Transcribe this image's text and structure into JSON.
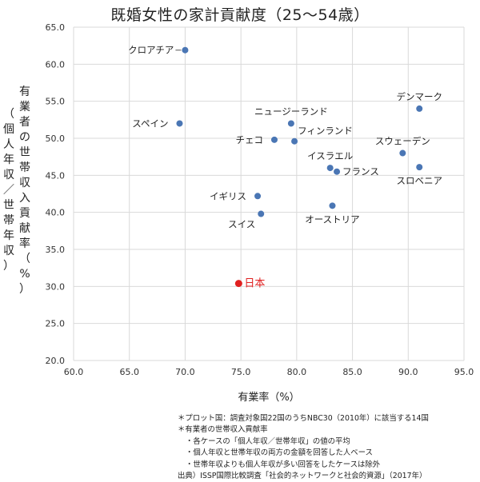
{
  "chart_data": {
    "type": "scatter",
    "title": "既婚女性の家計貢献度（25～54歳）",
    "xlabel": "有業率（%）",
    "ylabel_inner": "有業者の世帯収入貢献率（%）",
    "ylabel_outer": "（個人年収／世帯年収）",
    "xlim": [
      60.0,
      95.0
    ],
    "ylim": [
      20.0,
      65.0
    ],
    "xticks": [
      "60.0",
      "65.0",
      "70.0",
      "75.0",
      "80.0",
      "85.0",
      "90.0",
      "95.0"
    ],
    "yticks": [
      "20.0",
      "25.0",
      "30.0",
      "35.0",
      "40.0",
      "45.0",
      "50.0",
      "55.0",
      "60.0",
      "65.0"
    ],
    "grid": true,
    "colors": {
      "point": "#4a76b4",
      "highlight": "#e02020",
      "grid": "#d9d9d9"
    },
    "points": [
      {
        "label": "クロアチア",
        "x": 70.0,
        "y": 61.9,
        "label_pos": "left"
      },
      {
        "label": "スペイン",
        "x": 69.5,
        "y": 52.0,
        "label_pos": "left"
      },
      {
        "label": "ニュージーランド",
        "x": 79.5,
        "y": 52.0,
        "label_pos": "above"
      },
      {
        "label": "チェコ",
        "x": 78.0,
        "y": 49.8,
        "label_pos": "left"
      },
      {
        "label": "フィンランド",
        "x": 79.8,
        "y": 49.6,
        "label_pos": "upright"
      },
      {
        "label": "デンマーク",
        "x": 91.0,
        "y": 54.0,
        "label_pos": "above"
      },
      {
        "label": "スウェーデン",
        "x": 89.5,
        "y": 48.0,
        "label_pos": "above"
      },
      {
        "label": "スロベニア",
        "x": 91.0,
        "y": 46.1,
        "label_pos": "below"
      },
      {
        "label": "イスラエル",
        "x": 83.0,
        "y": 46.0,
        "label_pos": "above"
      },
      {
        "label": "フランス",
        "x": 83.6,
        "y": 45.5,
        "label_pos": "right"
      },
      {
        "label": "イギリス",
        "x": 76.5,
        "y": 42.2,
        "label_pos": "left"
      },
      {
        "label": "オーストリア",
        "x": 83.2,
        "y": 40.9,
        "label_pos": "below"
      },
      {
        "label": "スイス",
        "x": 76.8,
        "y": 39.8,
        "label_pos": "belowleft"
      },
      {
        "label": "日本",
        "x": 74.8,
        "y": 30.4,
        "label_pos": "right",
        "highlight": true
      }
    ]
  },
  "notes": [
    "＊プロット国：調査対象国22国のうちNBC30（2010年）に該当する14国",
    "＊有業者の世帯収入貢献率",
    "・各ケースの「個人年収／世帯年収」の値の平均",
    "・個人年収と世帯年収の両方の金額を回答した人ベース",
    "・世帯年収よりも個人年収が多い回答をしたケースは除外",
    "出典）ISSP国際比較調査「社会的ネットワークと社会的資源」（2017年）"
  ]
}
